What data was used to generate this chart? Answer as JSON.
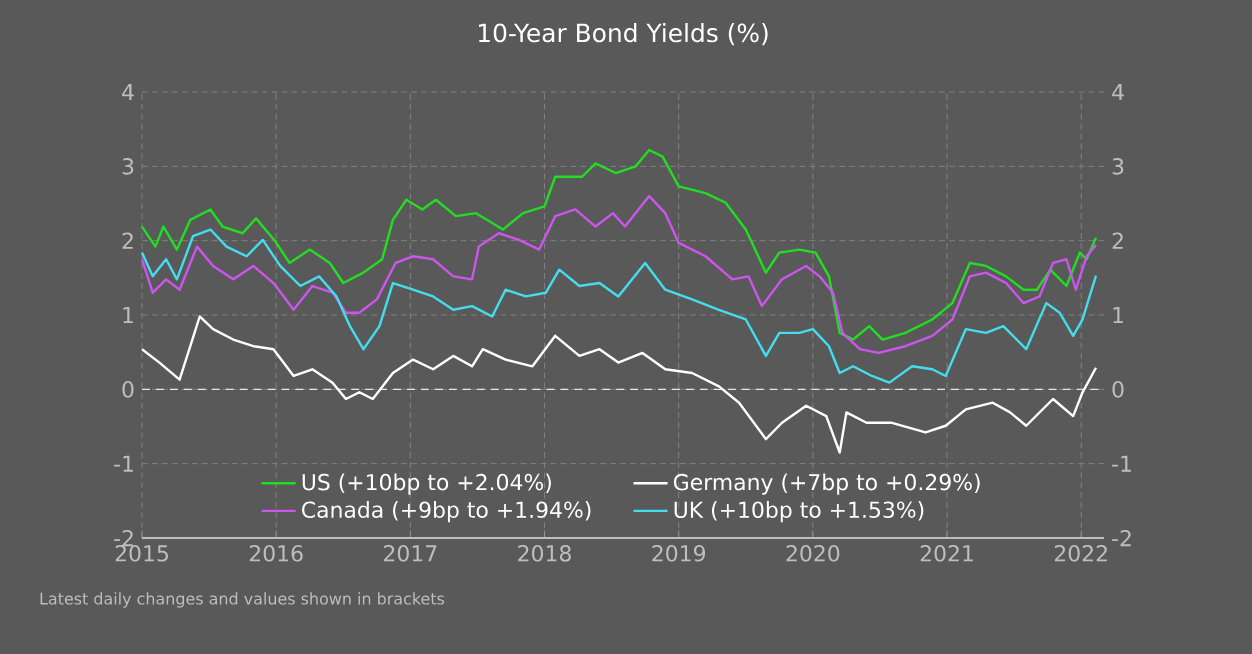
{
  "chart_data": {
    "type": "line",
    "title": "10-Year Bond Yields (%)",
    "annotations": [
      "Latest daily changes and values shown in brackets"
    ],
    "xlim": [
      2015,
      2022.17
    ],
    "xticks": [
      2015,
      2016,
      2017,
      2018,
      2019,
      2020,
      2021,
      2022
    ],
    "ylim": [
      -2,
      4
    ],
    "yticks": [
      -2,
      -1,
      0,
      1,
      2,
      3,
      4
    ],
    "y2lim": [
      -2,
      4
    ],
    "y2ticks": [
      -2,
      -1,
      0,
      1,
      2,
      3,
      4
    ],
    "grid": true,
    "legend": "bottom",
    "ref_lines": [
      {
        "axis": "y",
        "value": 0,
        "color": "#e6e6e6",
        "line_style": "dashed"
      }
    ],
    "series": [
      {
        "name": "US (+10bp to +2.04%)",
        "color": "#22dd22",
        "x": [
          2015.0,
          2015.1,
          2015.16,
          2015.26,
          2015.36,
          2015.51,
          2015.6,
          2015.75,
          2015.85,
          2015.99,
          2016.1,
          2016.25,
          2016.4,
          2016.5,
          2016.65,
          2016.79,
          2016.87,
          2016.97,
          2017.09,
          2017.19,
          2017.34,
          2017.49,
          2017.69,
          2017.84,
          2018.0,
          2018.08,
          2018.28,
          2018.38,
          2018.53,
          2018.68,
          2018.78,
          2018.88,
          2019.0,
          2019.2,
          2019.35,
          2019.5,
          2019.65,
          2019.75,
          2019.9,
          2020.02,
          2020.12,
          2020.2,
          2020.3,
          2020.42,
          2020.52,
          2020.69,
          2020.89,
          2021.04,
          2021.17,
          2021.29,
          2021.44,
          2021.57,
          2021.67,
          2021.77,
          2021.89,
          2021.99,
          2022.04,
          2022.11
        ],
        "values": [
          2.19,
          1.92,
          2.19,
          1.88,
          2.28,
          2.42,
          2.19,
          2.1,
          2.3,
          2.0,
          1.7,
          1.88,
          1.7,
          1.43,
          1.57,
          1.75,
          2.28,
          2.55,
          2.42,
          2.55,
          2.33,
          2.37,
          2.15,
          2.37,
          2.46,
          2.86,
          2.86,
          3.04,
          2.91,
          3.0,
          3.22,
          3.13,
          2.73,
          2.64,
          2.51,
          2.15,
          1.57,
          1.84,
          1.88,
          1.84,
          1.52,
          0.76,
          0.67,
          0.85,
          0.67,
          0.76,
          0.94,
          1.16,
          1.7,
          1.66,
          1.52,
          1.34,
          1.34,
          1.61,
          1.39,
          1.84,
          1.75,
          2.04
        ]
      },
      {
        "name": "Germany (+7bp to +0.29%)",
        "color": "#ffffff",
        "x": [
          2015.0,
          2015.13,
          2015.28,
          2015.36,
          2015.43,
          2015.53,
          2015.68,
          2015.83,
          2015.98,
          2016.13,
          2016.27,
          2016.42,
          2016.52,
          2016.62,
          2016.72,
          2016.87,
          2017.02,
          2017.17,
          2017.32,
          2017.46,
          2017.54,
          2017.71,
          2017.91,
          2018.08,
          2018.26,
          2018.41,
          2018.55,
          2018.73,
          2018.9,
          2019.1,
          2019.3,
          2019.45,
          2019.65,
          2019.77,
          2019.95,
          2020.1,
          2020.2,
          2020.25,
          2020.4,
          2020.59,
          2020.84,
          2020.99,
          2021.14,
          2021.34,
          2021.47,
          2021.59,
          2021.79,
          2021.94,
          2022.01,
          2022.11
        ],
        "values": [
          0.54,
          0.36,
          0.13,
          0.58,
          0.98,
          0.81,
          0.67,
          0.58,
          0.54,
          0.18,
          0.27,
          0.09,
          -0.13,
          -0.04,
          -0.13,
          0.22,
          0.4,
          0.27,
          0.45,
          0.31,
          0.54,
          0.4,
          0.31,
          0.72,
          0.45,
          0.54,
          0.36,
          0.49,
          0.27,
          0.22,
          0.04,
          -0.18,
          -0.67,
          -0.45,
          -0.22,
          -0.36,
          -0.85,
          -0.31,
          -0.45,
          -0.45,
          -0.58,
          -0.49,
          -0.27,
          -0.18,
          -0.31,
          -0.49,
          -0.13,
          -0.36,
          -0.04,
          0.29
        ]
      },
      {
        "name": "Canada (+9bp to +1.94%)",
        "color": "#cc55ee",
        "x": [
          2015.0,
          2015.08,
          2015.18,
          2015.28,
          2015.41,
          2015.53,
          2015.68,
          2015.83,
          2015.98,
          2016.13,
          2016.27,
          2016.42,
          2016.52,
          2016.62,
          2016.75,
          2016.89,
          2017.02,
          2017.17,
          2017.32,
          2017.46,
          2017.51,
          2017.66,
          2017.81,
          2017.96,
          2018.08,
          2018.23,
          2018.38,
          2018.51,
          2018.6,
          2018.78,
          2018.9,
          2019.0,
          2019.2,
          2019.4,
          2019.52,
          2019.62,
          2019.77,
          2019.95,
          2020.05,
          2020.15,
          2020.22,
          2020.35,
          2020.49,
          2020.69,
          2020.89,
          2021.04,
          2021.17,
          2021.29,
          2021.44,
          2021.57,
          2021.69,
          2021.79,
          2021.89,
          2021.96,
          2022.04,
          2022.11
        ],
        "values": [
          1.75,
          1.3,
          1.48,
          1.34,
          1.92,
          1.66,
          1.48,
          1.66,
          1.43,
          1.07,
          1.39,
          1.3,
          1.03,
          1.03,
          1.21,
          1.7,
          1.79,
          1.75,
          1.52,
          1.48,
          1.92,
          2.1,
          2.01,
          1.88,
          2.33,
          2.42,
          2.19,
          2.37,
          2.19,
          2.6,
          2.37,
          1.97,
          1.79,
          1.48,
          1.52,
          1.12,
          1.48,
          1.66,
          1.52,
          1.3,
          0.76,
          0.54,
          0.49,
          0.58,
          0.72,
          0.94,
          1.52,
          1.57,
          1.43,
          1.16,
          1.25,
          1.7,
          1.75,
          1.34,
          1.79,
          1.94
        ]
      },
      {
        "name": "UK (+10bp to +1.53%)",
        "color": "#44ddee",
        "x": [
          2015.0,
          2015.08,
          2015.18,
          2015.26,
          2015.38,
          2015.51,
          2015.63,
          2015.78,
          2015.9,
          2016.03,
          2016.18,
          2016.32,
          2016.45,
          2016.55,
          2016.65,
          2016.77,
          2016.87,
          2017.02,
          2017.17,
          2017.32,
          2017.46,
          2017.61,
          2017.71,
          2017.86,
          2018.01,
          2018.11,
          2018.26,
          2018.41,
          2018.55,
          2018.75,
          2018.9,
          2019.1,
          2019.3,
          2019.5,
          2019.65,
          2019.75,
          2019.9,
          2020.0,
          2020.12,
          2020.2,
          2020.3,
          2020.44,
          2020.57,
          2020.74,
          2020.89,
          2020.99,
          2021.14,
          2021.29,
          2021.42,
          2021.59,
          2021.74,
          2021.84,
          2021.94,
          2022.01,
          2022.11
        ],
        "values": [
          1.84,
          1.52,
          1.75,
          1.48,
          2.06,
          2.15,
          1.92,
          1.79,
          2.01,
          1.66,
          1.39,
          1.52,
          1.25,
          0.85,
          0.54,
          0.85,
          1.43,
          1.34,
          1.25,
          1.07,
          1.12,
          0.98,
          1.34,
          1.25,
          1.3,
          1.61,
          1.39,
          1.43,
          1.25,
          1.7,
          1.34,
          1.21,
          1.07,
          0.94,
          0.45,
          0.76,
          0.76,
          0.81,
          0.58,
          0.22,
          0.31,
          0.18,
          0.09,
          0.31,
          0.27,
          0.18,
          0.81,
          0.76,
          0.85,
          0.54,
          1.16,
          1.03,
          0.72,
          0.94,
          1.53
        ]
      }
    ]
  }
}
